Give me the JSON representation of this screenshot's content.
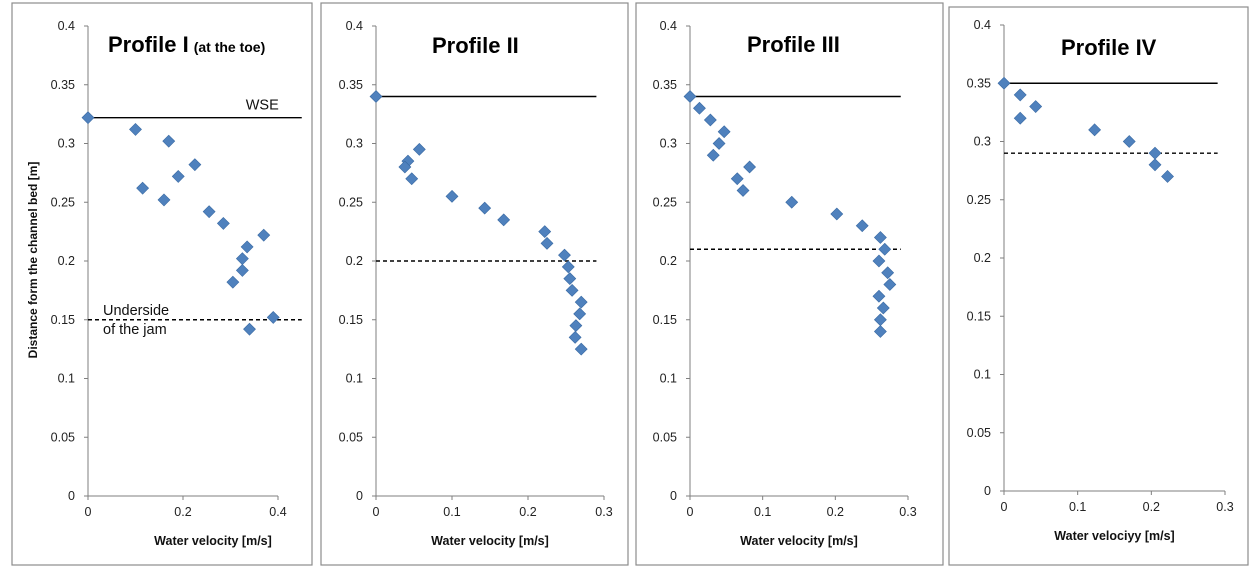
{
  "figure": {
    "ylabel": "Distance form the channel bed [m]",
    "colors": {
      "marker": "#4F81BD",
      "marker_edge": "#3A6AA3",
      "line": "#000000",
      "frame": "#8C8C8C"
    }
  },
  "chart_data": [
    {
      "type": "scatter",
      "title": "Profile I",
      "title_suffix": "(at the toe)",
      "xlabel": "Water velocity [m/s]",
      "ylabel": "Distance form the channel bed [m]",
      "xlim": [
        0,
        0.45
      ],
      "ylim": [
        0,
        0.4
      ],
      "x_ticks": [
        "0",
        "0.2",
        "0.4"
      ],
      "x_tick_values": [
        0,
        0.2,
        0.4
      ],
      "y_ticks": [
        "0",
        "0.05",
        "0.1",
        "0.15",
        "0.2",
        "0.25",
        "0.3",
        "0.35",
        "0.4"
      ],
      "y_tick_values": [
        0,
        0.05,
        0.1,
        0.15,
        0.2,
        0.25,
        0.3,
        0.35,
        0.4
      ],
      "points": [
        [
          0,
          0.322
        ],
        [
          0.1,
          0.312
        ],
        [
          0.17,
          0.302
        ],
        [
          0.225,
          0.282
        ],
        [
          0.19,
          0.272
        ],
        [
          0.115,
          0.262
        ],
        [
          0.16,
          0.252
        ],
        [
          0.255,
          0.242
        ],
        [
          0.285,
          0.232
        ],
        [
          0.37,
          0.222
        ],
        [
          0.335,
          0.212
        ],
        [
          0.325,
          0.202
        ],
        [
          0.325,
          0.192
        ],
        [
          0.305,
          0.182
        ],
        [
          0.39,
          0.152
        ],
        [
          0.34,
          0.142
        ]
      ],
      "wse": {
        "y": 0.322,
        "x_end": 0.45,
        "label": "WSE"
      },
      "underside": {
        "y": 0.15,
        "x_end": 0.45,
        "label_lines": [
          "Underside",
          "of the jam"
        ]
      }
    },
    {
      "type": "scatter",
      "title": "Profile II",
      "title_suffix": "",
      "xlabel": "Water velocity [m/s]",
      "ylabel": "",
      "xlim": [
        0,
        0.3
      ],
      "ylim": [
        0,
        0.4
      ],
      "x_ticks": [
        "0",
        "0.1",
        "0.2",
        "0.3"
      ],
      "x_tick_values": [
        0,
        0.1,
        0.2,
        0.3
      ],
      "y_ticks": [
        "0",
        "0.05",
        "0.1",
        "0.15",
        "0.2",
        "0.25",
        "0.3",
        "0.35",
        "0.4"
      ],
      "y_tick_values": [
        0,
        0.05,
        0.1,
        0.15,
        0.2,
        0.25,
        0.3,
        0.35,
        0.4
      ],
      "points": [
        [
          0,
          0.34
        ],
        [
          0.057,
          0.295
        ],
        [
          0.042,
          0.285
        ],
        [
          0.038,
          0.28
        ],
        [
          0.047,
          0.27
        ],
        [
          0.1,
          0.255
        ],
        [
          0.143,
          0.245
        ],
        [
          0.168,
          0.235
        ],
        [
          0.222,
          0.225
        ],
        [
          0.225,
          0.215
        ],
        [
          0.248,
          0.205
        ],
        [
          0.253,
          0.195
        ],
        [
          0.255,
          0.185
        ],
        [
          0.258,
          0.175
        ],
        [
          0.27,
          0.165
        ],
        [
          0.268,
          0.155
        ],
        [
          0.263,
          0.145
        ],
        [
          0.262,
          0.135
        ],
        [
          0.27,
          0.125
        ]
      ],
      "wse": {
        "y": 0.34,
        "x_end": 0.29,
        "label": ""
      },
      "underside": {
        "y": 0.2,
        "x_end": 0.29,
        "label_lines": []
      }
    },
    {
      "type": "scatter",
      "title": "Profile III",
      "title_suffix": "",
      "xlabel": "Water velocity [m/s]",
      "ylabel": "",
      "xlim": [
        0,
        0.3
      ],
      "ylim": [
        0,
        0.4
      ],
      "x_ticks": [
        "0",
        "0.1",
        "0.2",
        "0.3"
      ],
      "x_tick_values": [
        0,
        0.1,
        0.2,
        0.3
      ],
      "y_ticks": [
        "0",
        "0.05",
        "0.1",
        "0.15",
        "0.2",
        "0.25",
        "0.3",
        "0.35",
        "0.4"
      ],
      "y_tick_values": [
        0,
        0.05,
        0.1,
        0.15,
        0.2,
        0.25,
        0.3,
        0.35,
        0.4
      ],
      "points": [
        [
          0,
          0.34
        ],
        [
          0.013,
          0.33
        ],
        [
          0.028,
          0.32
        ],
        [
          0.047,
          0.31
        ],
        [
          0.04,
          0.3
        ],
        [
          0.032,
          0.29
        ],
        [
          0.082,
          0.28
        ],
        [
          0.065,
          0.27
        ],
        [
          0.073,
          0.26
        ],
        [
          0.14,
          0.25
        ],
        [
          0.202,
          0.24
        ],
        [
          0.237,
          0.23
        ],
        [
          0.262,
          0.22
        ],
        [
          0.268,
          0.21
        ],
        [
          0.26,
          0.2
        ],
        [
          0.272,
          0.19
        ],
        [
          0.275,
          0.18
        ],
        [
          0.26,
          0.17
        ],
        [
          0.266,
          0.16
        ],
        [
          0.262,
          0.15
        ],
        [
          0.262,
          0.14
        ]
      ],
      "wse": {
        "y": 0.34,
        "x_end": 0.29,
        "label": ""
      },
      "underside": {
        "y": 0.21,
        "x_end": 0.29,
        "label_lines": []
      }
    },
    {
      "type": "scatter",
      "title": "Profile IV",
      "title_suffix": "",
      "xlabel": "Water velociyy [m/s]",
      "ylabel": "",
      "xlim": [
        0,
        0.3
      ],
      "ylim": [
        0,
        0.4
      ],
      "x_ticks": [
        "0",
        "0.1",
        "0.2",
        "0.3"
      ],
      "x_tick_values": [
        0,
        0.1,
        0.2,
        0.3
      ],
      "y_ticks": [
        "0",
        "0.05",
        "0.1",
        "0.15",
        "0.2",
        "0.25",
        "0.3",
        "0.35",
        "0.4"
      ],
      "y_tick_values": [
        0,
        0.05,
        0.1,
        0.15,
        0.2,
        0.25,
        0.3,
        0.35,
        0.4
      ],
      "points": [
        [
          0,
          0.35
        ],
        [
          0.022,
          0.34
        ],
        [
          0.043,
          0.33
        ],
        [
          0.022,
          0.32
        ],
        [
          0.123,
          0.31
        ],
        [
          0.17,
          0.3
        ],
        [
          0.205,
          0.29
        ],
        [
          0.205,
          0.28
        ],
        [
          0.222,
          0.27
        ]
      ],
      "wse": {
        "y": 0.35,
        "x_end": 0.29,
        "label": ""
      },
      "underside": {
        "y": 0.29,
        "x_end": 0.29,
        "label_lines": []
      }
    }
  ]
}
